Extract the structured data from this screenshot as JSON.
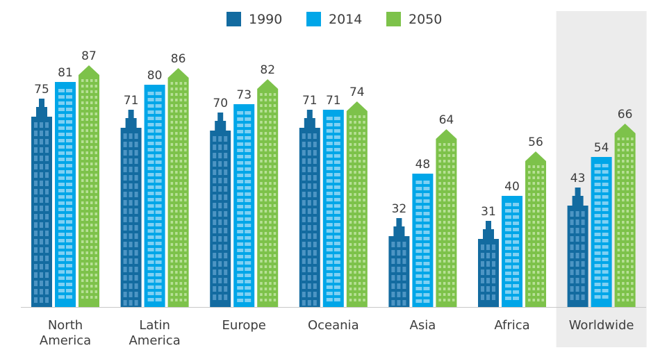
{
  "chart_data": {
    "type": "bar",
    "categories": [
      [
        "North",
        "America"
      ],
      [
        "Latin",
        "America"
      ],
      [
        "Europe"
      ],
      [
        "Oceania"
      ],
      [
        "Asia"
      ],
      [
        "Africa"
      ],
      [
        "Worldwide"
      ]
    ],
    "series": [
      {
        "name": "1990",
        "color": "#136ba0",
        "values": [
          75,
          71,
          70,
          71,
          32,
          31,
          43
        ]
      },
      {
        "name": "2014",
        "color": "#00a6e8",
        "values": [
          81,
          80,
          73,
          71,
          48,
          40,
          54
        ]
      },
      {
        "name": "2050",
        "color": "#7dc24a",
        "values": [
          87,
          86,
          82,
          74,
          64,
          56,
          66
        ]
      }
    ],
    "ylim": [
      0,
      100
    ],
    "legend_position": "top-center",
    "highlighted_category": "Worldwide",
    "highlight_color": "#ececec",
    "grid": false,
    "bar_style": "skyscraper-building"
  }
}
